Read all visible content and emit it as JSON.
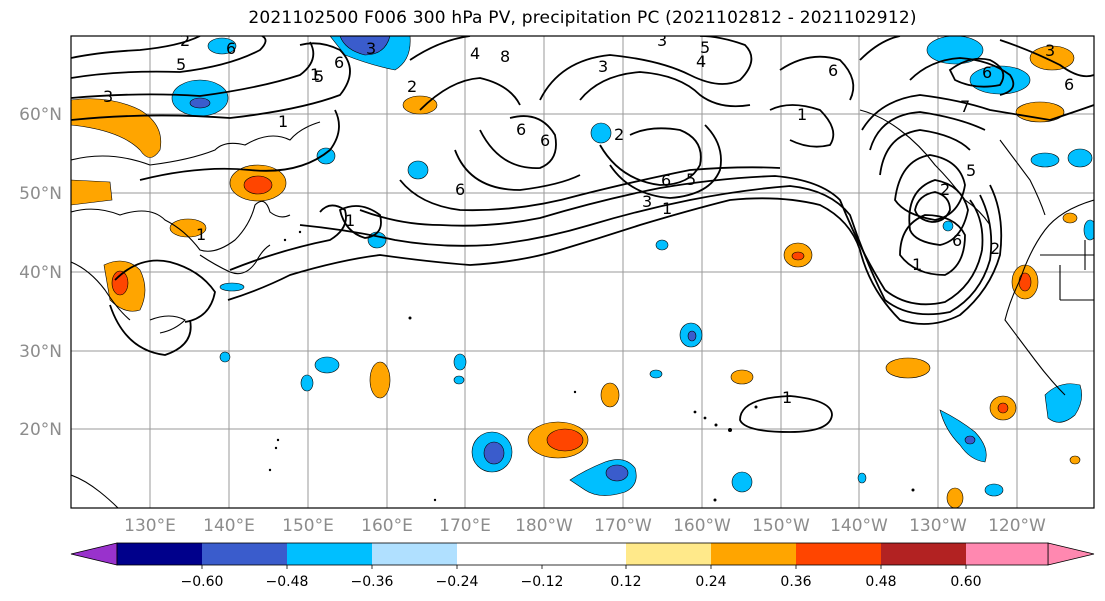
{
  "title": "2021102500 F006 300 hPa PV, precipitation PC (2021102812 - 2021102912)",
  "map": {
    "lat_labels": [
      "60°N",
      "50°N",
      "40°N",
      "30°N",
      "20°N"
    ],
    "lon_labels": [
      "130°E",
      "140°E",
      "150°E",
      "160°E",
      "170°E",
      "180°W",
      "170°W",
      "160°W",
      "150°W",
      "140°W",
      "130°W",
      "120°W"
    ],
    "contour_labels": [
      "6",
      "5",
      "3",
      "1",
      "2",
      "6",
      "5",
      "2",
      "3",
      "4",
      "3",
      "1",
      "8",
      "6",
      "1",
      "6",
      "6",
      "5",
      "2",
      "3",
      "1",
      "6",
      "5",
      "4",
      "3",
      "5",
      "6",
      "1",
      "1",
      "2",
      "2",
      "6",
      "7",
      "6",
      "6",
      "1",
      "3",
      "1"
    ]
  },
  "colorbar": {
    "ticks": [
      "−0.60",
      "−0.48",
      "−0.36",
      "−0.24",
      "−0.12",
      "0.12",
      "0.24",
      "0.36",
      "0.48",
      "0.60"
    ],
    "colors": [
      "#9932cc",
      "#00008b",
      "#3a5ccc",
      "#00bfff",
      "#b0e0ff",
      "#ffffff",
      "#ffe98a",
      "#ffa500",
      "#ff4500",
      "#b22222",
      "#ff88b0"
    ]
  }
}
